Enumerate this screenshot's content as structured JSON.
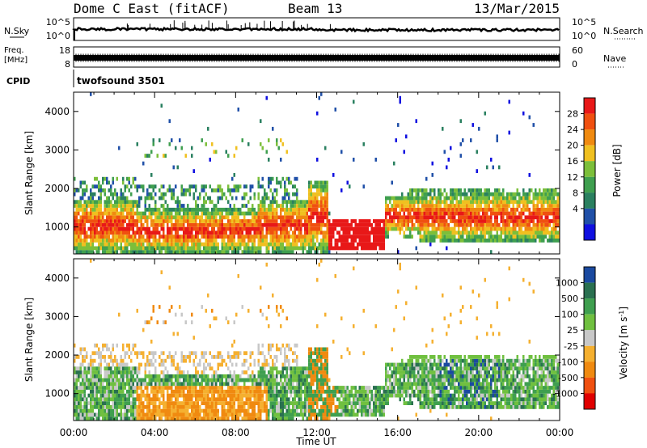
{
  "header": {
    "title": "Dome C East (fitACF)",
    "beam": "Beam 13",
    "date": "13/Mar/2015"
  },
  "aux_panels": {
    "nsky": {
      "label": "N.Sky",
      "ticks": [
        "10^5",
        "10^0"
      ]
    },
    "nsearch": {
      "label": "N.Search",
      "ticks": [
        "10^5",
        "10^0"
      ]
    },
    "freq": {
      "label_line1": "Freq.",
      "label_line2": "[MHz]",
      "ticks": [
        "18",
        "8"
      ]
    },
    "nave": {
      "label": "Nave",
      "ticks": [
        "60",
        "0"
      ]
    },
    "cpid": {
      "label": "CPID",
      "value": "twofsound 3501"
    }
  },
  "colors": {
    "power": [
      "#1010e0",
      "#2050a8",
      "#2a8060",
      "#3f9f4f",
      "#7cbf3a",
      "#f0c020",
      "#f08a10",
      "#f05010",
      "#e81818"
    ],
    "velocity": [
      "#e00000",
      "#f05010",
      "#f08a10",
      "#f5b030",
      "#c8c8c8",
      "#70c040",
      "#3f9f4f",
      "#2a7050",
      "#1a4aa0"
    ]
  },
  "chart_data": [
    {
      "type": "heatmap",
      "name": "power",
      "ylabel": "Slant Range [km]",
      "xlabel": "",
      "x_ticks": [
        "00:00",
        "04:00",
        "08:00",
        "12:00",
        "16:00",
        "20:00",
        "00:00"
      ],
      "y_ticks": [
        "1000",
        "2000",
        "3000",
        "4000"
      ],
      "ylim": [
        300,
        4500
      ],
      "colorbar": {
        "label": "Power [dB]",
        "ticks": [
          "4",
          "8",
          "12",
          "16",
          "20",
          "24",
          "28"
        ]
      }
    },
    {
      "type": "heatmap",
      "name": "velocity",
      "ylabel": "Slant Range [km]",
      "xlabel": "Time UT",
      "x_ticks": [
        "00:00",
        "04:00",
        "08:00",
        "12:00",
        "16:00",
        "20:00",
        "00:00"
      ],
      "y_ticks": [
        "1000",
        "2000",
        "3000",
        "4000"
      ],
      "ylim": [
        300,
        4500
      ],
      "colorbar": {
        "label": "Velocity [m s^-1]",
        "ticks": [
          "1000",
          "500",
          "100",
          "25",
          "-25",
          "-100",
          "-500",
          "-1000"
        ]
      }
    }
  ]
}
